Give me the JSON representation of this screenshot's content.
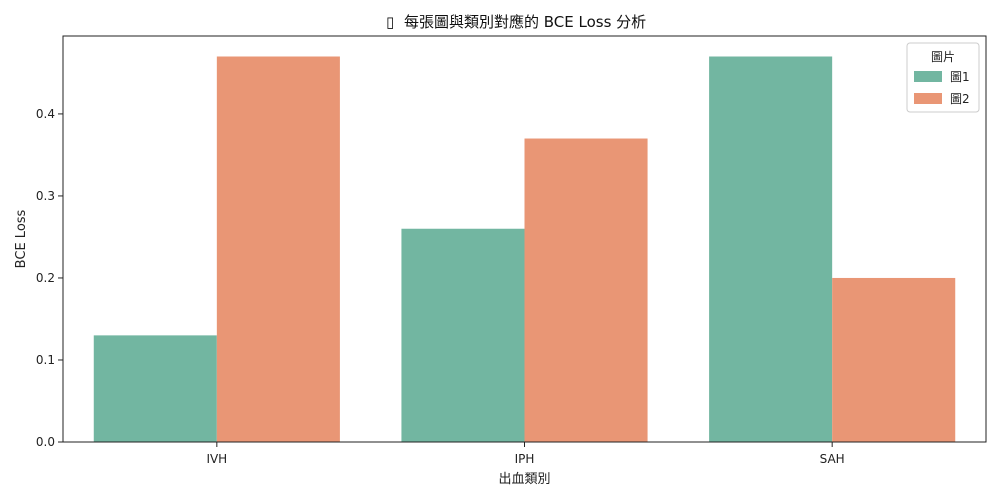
{
  "chart_data": {
    "type": "bar",
    "title": "每張圖與類別對應的 BCE Loss 分析",
    "title_icon": "▯",
    "xlabel": "出血類別",
    "ylabel": "BCE Loss",
    "categories": [
      "IVH",
      "IPH",
      "SAH"
    ],
    "series": [
      {
        "name": "圖1",
        "values": [
          0.13,
          0.26,
          0.47
        ],
        "color": "#72b6a1"
      },
      {
        "name": "圖2",
        "values": [
          0.47,
          0.37,
          0.2
        ],
        "color": "#e99675"
      }
    ],
    "ylim": [
      0,
      0.495
    ],
    "yticks": [
      "0.0",
      "0.1",
      "0.2",
      "0.3",
      "0.4"
    ],
    "legend": {
      "title": "圖片",
      "position": "top-right"
    },
    "grid": false
  }
}
